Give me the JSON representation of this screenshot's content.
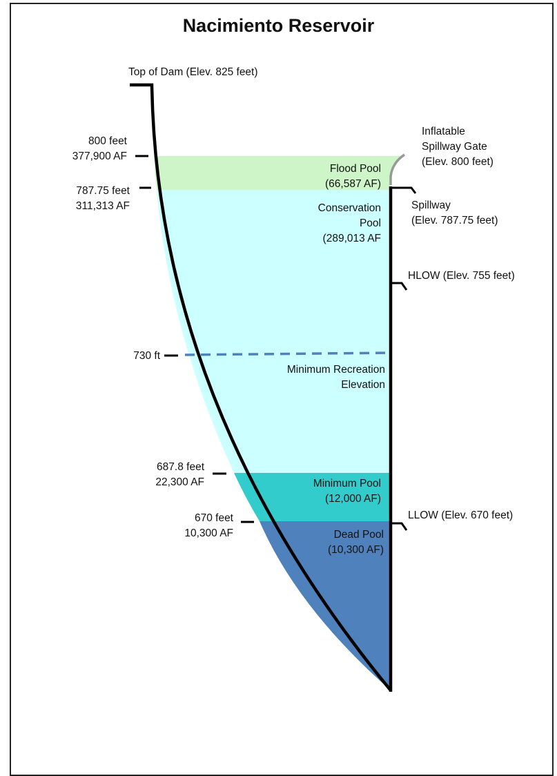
{
  "title": "Nacimiento Reservoir",
  "dam_top": "Top of  Dam (Elev. 825 feet)",
  "left_marks": [
    {
      "line1": "800 feet",
      "line2": "377,900 AF"
    },
    {
      "line1": "787.75 feet",
      "line2": "311,313 AF"
    },
    {
      "line1": "730 ft",
      "line2": ""
    },
    {
      "line1": "687.8 feet",
      "line2": "22,300 AF"
    },
    {
      "line1": "670 feet",
      "line2": "10,300 AF"
    }
  ],
  "pools": [
    {
      "line1": "Flood Pool",
      "line2": "(66,587 AF)",
      "line3": "",
      "color": "#cdf5c8"
    },
    {
      "line1": "Conservation",
      "line2": "Pool",
      "line3": "(289,013  AF",
      "color": "#ccffff"
    },
    {
      "line1": "Minimum Recreation",
      "line2": "Elevation",
      "line3": "",
      "color": "#ccffff"
    },
    {
      "line1": "Minimum Pool",
      "line2": "(12,000 AF)",
      "line3": "",
      "color": "#33cccc"
    },
    {
      "line1": "Dead Pool",
      "line2": "(10,300 AF)",
      "line3": "",
      "color": "#4f81bd"
    }
  ],
  "right_marks": [
    {
      "line1": "Inflatable",
      "line2": "Spillway Gate",
      "line3": "(Elev. 800 feet)"
    },
    {
      "line1": "Spillway",
      "line2": "(Elev. 787.75 feet)",
      "line3": ""
    },
    {
      "line1": "HLOW (Elev. 755 feet)",
      "line2": "",
      "line3": ""
    },
    {
      "line1": "LLOW (Elev. 670 feet)",
      "line2": "",
      "line3": ""
    }
  ],
  "dash_color": "#4f81bd"
}
